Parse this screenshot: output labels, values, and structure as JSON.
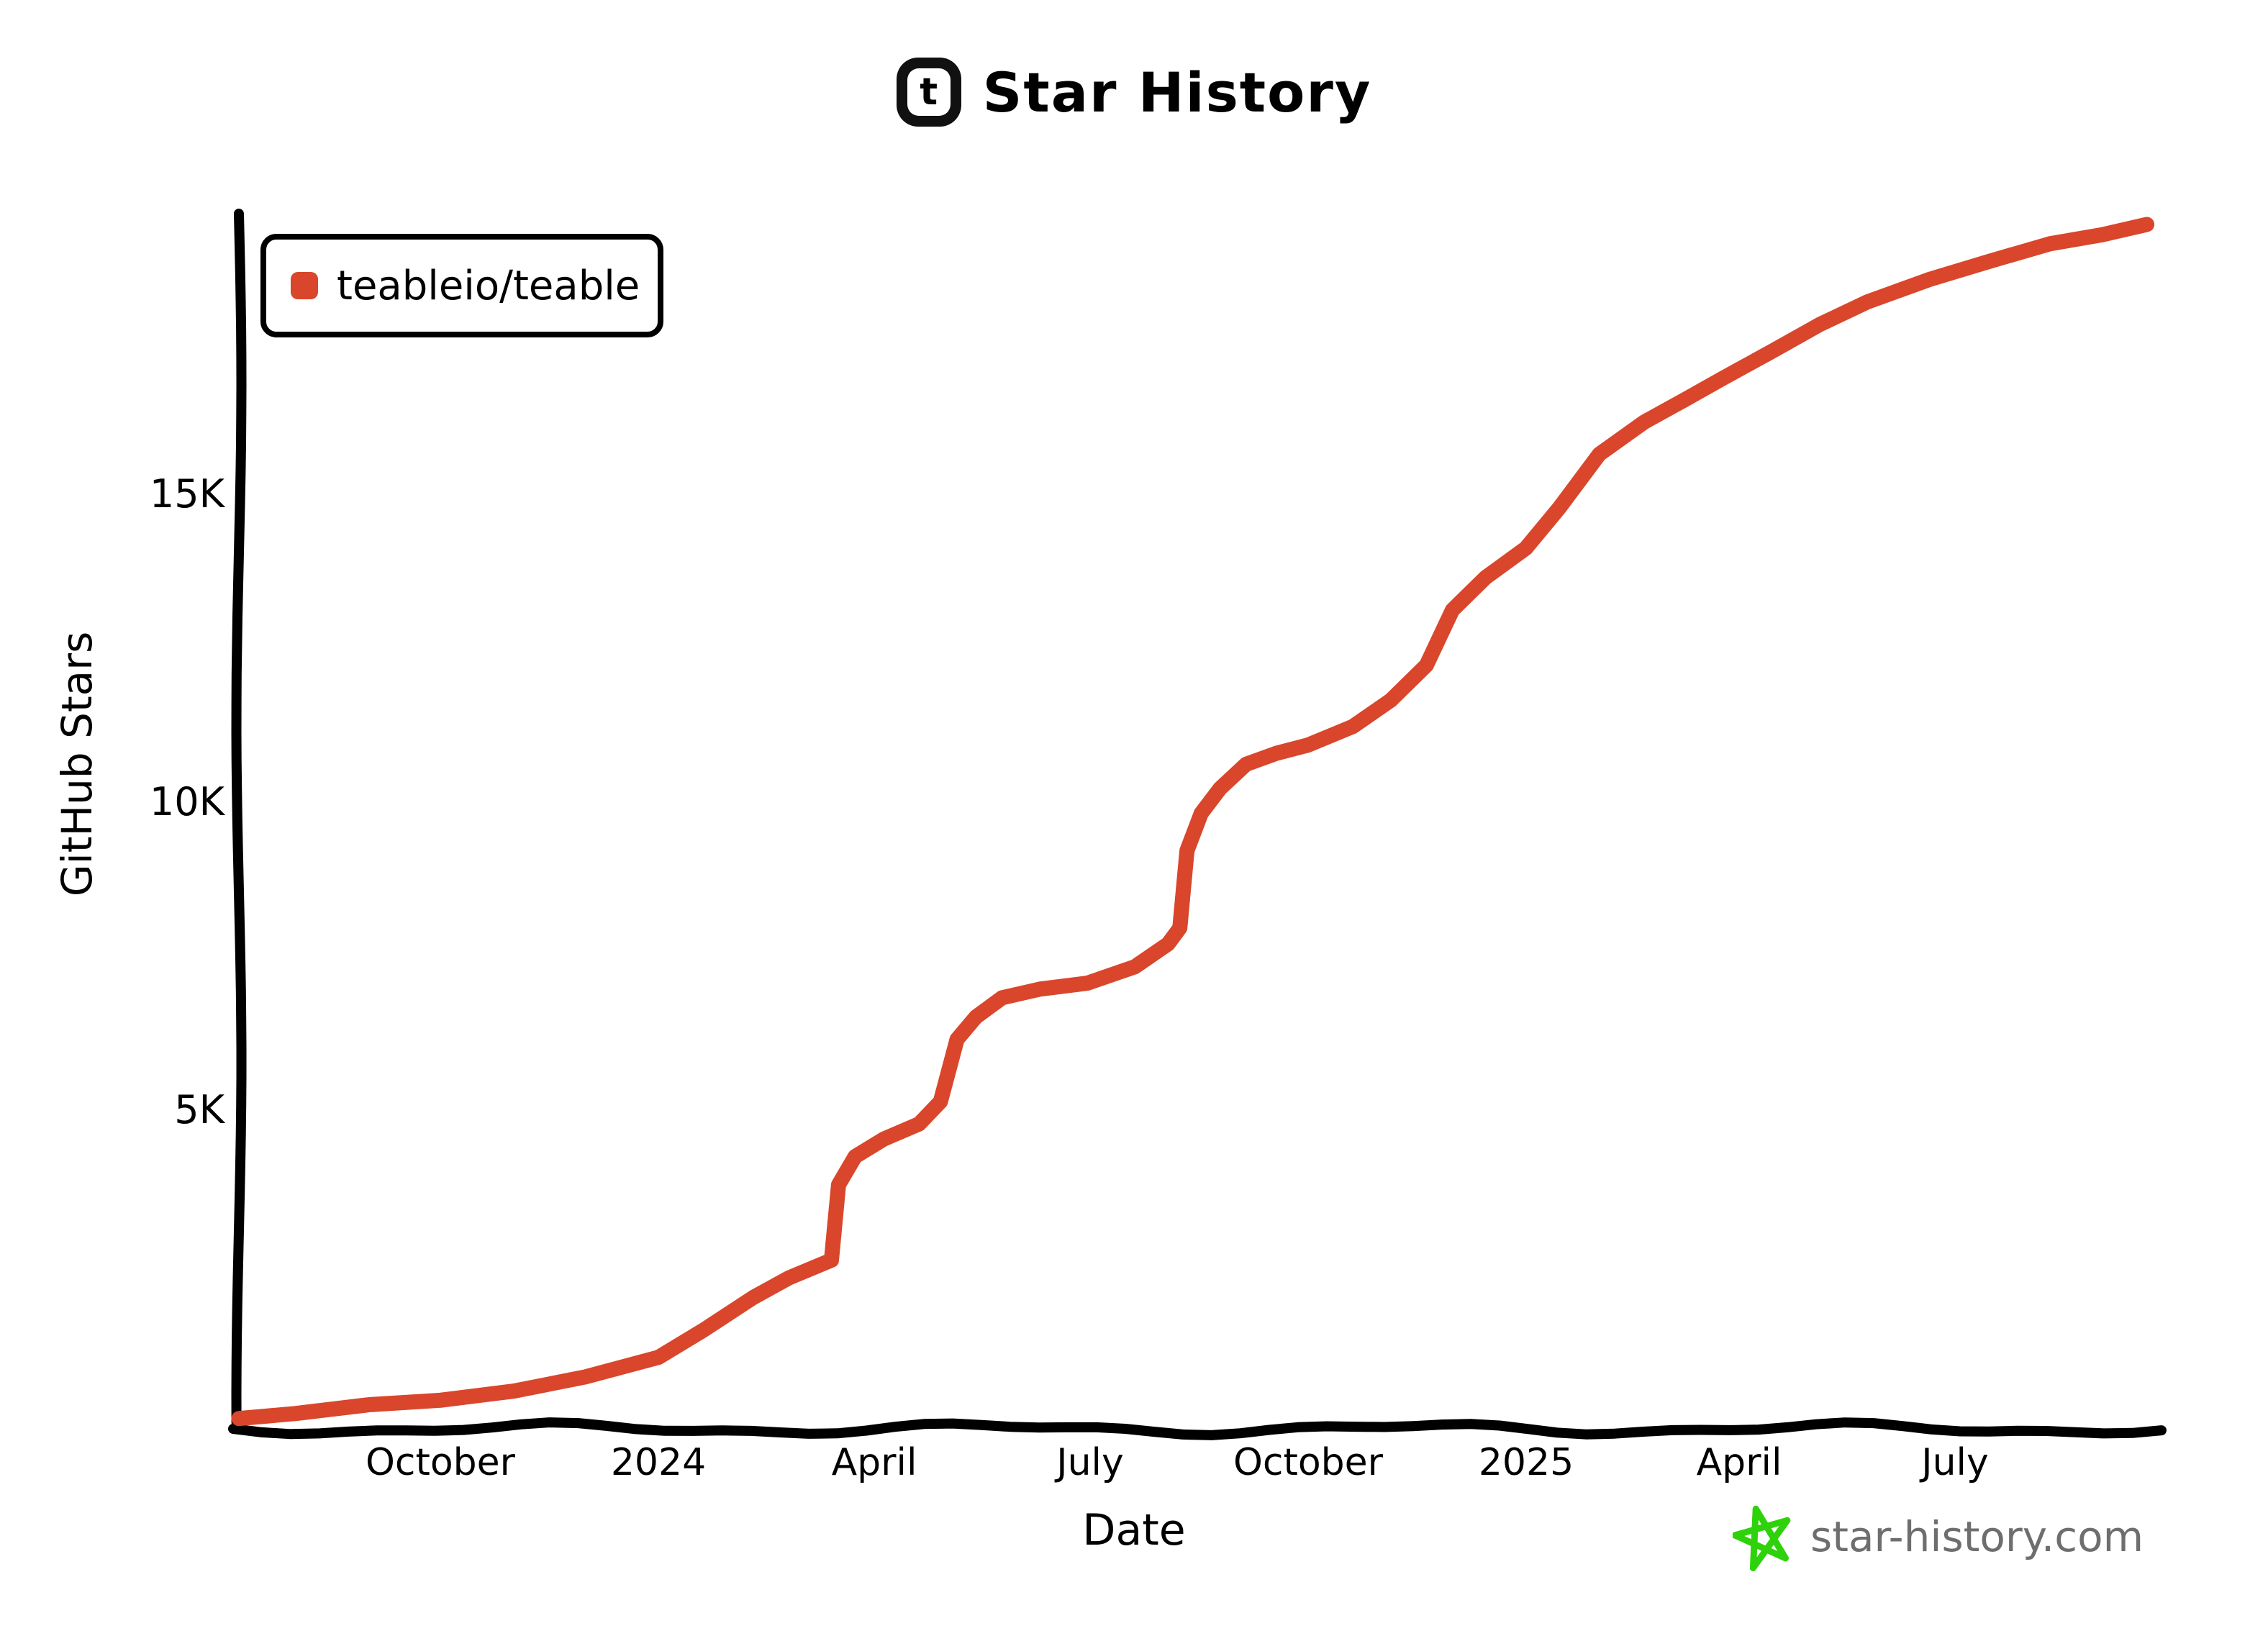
{
  "title": {
    "text": "Star History",
    "logo_letter": "t"
  },
  "legend": {
    "items": [
      {
        "label": "teableio/teable",
        "color": "#d9462b"
      }
    ]
  },
  "watermark": {
    "text": "star-history.com",
    "star_color": "#2ed20a",
    "text_color": "#6e6e6e"
  },
  "colors": {
    "series": "#d9462b",
    "axis": "#000000"
  },
  "chart_data": {
    "type": "line",
    "title": "Star History",
    "xlabel": "Date",
    "ylabel": "GitHub Stars",
    "grid": false,
    "legend_position": "top-left",
    "xlim": [
      "2023-07-08",
      "2025-09-28"
    ],
    "ylim": [
      0,
      19560
    ],
    "x_ticks": [
      {
        "date": "2023-10-01",
        "label": "October"
      },
      {
        "date": "2024-01-01",
        "label": "2024"
      },
      {
        "date": "2024-04-01",
        "label": "April"
      },
      {
        "date": "2024-07-01",
        "label": "July"
      },
      {
        "date": "2024-10-01",
        "label": "October"
      },
      {
        "date": "2025-01-01",
        "label": "2025"
      },
      {
        "date": "2025-04-01",
        "label": "April"
      },
      {
        "date": "2025-07-01",
        "label": "July"
      }
    ],
    "y_ticks": [
      {
        "value": 5000,
        "label": "5K"
      },
      {
        "value": 10000,
        "label": "10K"
      },
      {
        "value": 15000,
        "label": "15K"
      }
    ],
    "series": [
      {
        "name": "teableio/teable",
        "color": "#d9462b",
        "points": [
          [
            "2023-07-08",
            10
          ],
          [
            "2023-08-01",
            90
          ],
          [
            "2023-09-01",
            190
          ],
          [
            "2023-10-01",
            300
          ],
          [
            "2023-11-01",
            450
          ],
          [
            "2023-12-01",
            640
          ],
          [
            "2024-01-01",
            1000
          ],
          [
            "2024-01-20",
            1450
          ],
          [
            "2024-02-10",
            1950
          ],
          [
            "2024-02-25",
            2250
          ],
          [
            "2024-03-14",
            2550
          ],
          [
            "2024-03-17",
            3780
          ],
          [
            "2024-03-24",
            4250
          ],
          [
            "2024-04-05",
            4550
          ],
          [
            "2024-04-20",
            4800
          ],
          [
            "2024-04-29",
            5150
          ],
          [
            "2024-05-06",
            6150
          ],
          [
            "2024-05-14",
            6500
          ],
          [
            "2024-05-25",
            6800
          ],
          [
            "2024-06-10",
            6950
          ],
          [
            "2024-06-30",
            7080
          ],
          [
            "2024-07-20",
            7350
          ],
          [
            "2024-08-03",
            7700
          ],
          [
            "2024-08-08",
            7950
          ],
          [
            "2024-08-11",
            9200
          ],
          [
            "2024-08-17",
            9800
          ],
          [
            "2024-08-25",
            10200
          ],
          [
            "2024-09-05",
            10600
          ],
          [
            "2024-09-18",
            10800
          ],
          [
            "2024-10-01",
            10950
          ],
          [
            "2024-10-20",
            11250
          ],
          [
            "2024-11-05",
            11650
          ],
          [
            "2024-11-20",
            12200
          ],
          [
            "2024-12-01",
            13100
          ],
          [
            "2024-12-15",
            13650
          ],
          [
            "2025-01-01",
            14150
          ],
          [
            "2025-01-15",
            14800
          ],
          [
            "2025-02-01",
            15650
          ],
          [
            "2025-02-20",
            16150
          ],
          [
            "2025-03-10",
            16550
          ],
          [
            "2025-03-25",
            16900
          ],
          [
            "2025-04-15",
            17350
          ],
          [
            "2025-05-05",
            17750
          ],
          [
            "2025-05-25",
            18100
          ],
          [
            "2025-06-20",
            18500
          ],
          [
            "2025-07-15",
            18800
          ],
          [
            "2025-08-10",
            19050
          ],
          [
            "2025-09-01",
            19200
          ],
          [
            "2025-09-20",
            19400
          ]
        ]
      }
    ]
  }
}
